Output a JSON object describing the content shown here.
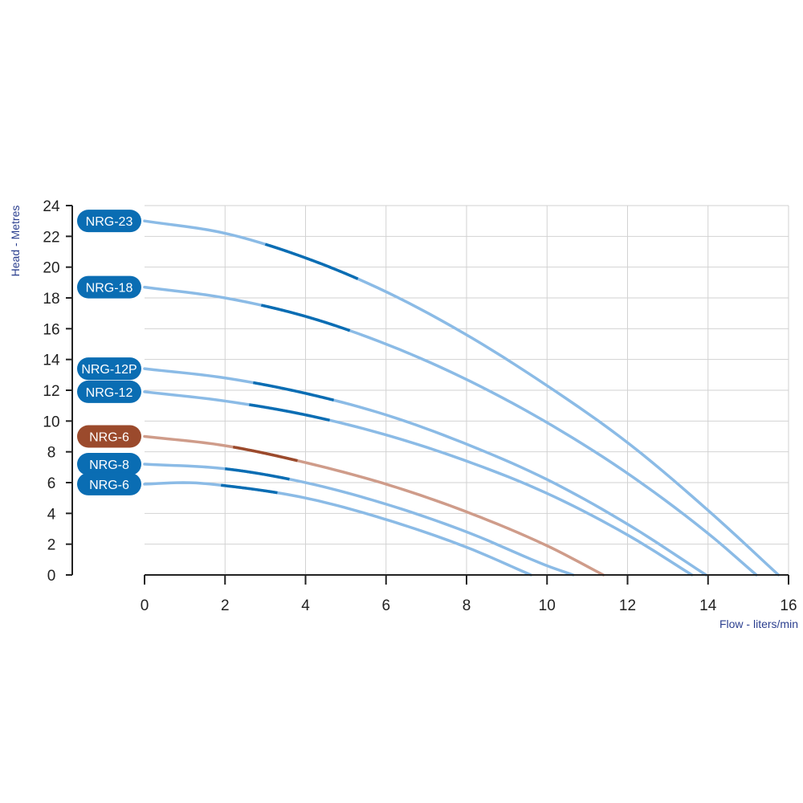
{
  "chart_data": {
    "type": "line",
    "xlabel": "Flow - liters/min",
    "ylabel": "Head - Metres",
    "xlim": [
      0,
      16
    ],
    "ylim": [
      0,
      24
    ],
    "x_ticks": [
      "0",
      "2",
      "4",
      "6",
      "8",
      "10",
      "12",
      "14",
      "16"
    ],
    "y_ticks": [
      "0",
      "2",
      "4",
      "6",
      "8",
      "10",
      "12",
      "14",
      "16",
      "18",
      "20",
      "22",
      "24"
    ],
    "grid": true,
    "colors": {
      "blue_curve": "#8bbbe6",
      "blue_highlight": "#0a6db3",
      "brown_curve": "#cf9c8a",
      "brown_highlight": "#9b4a2c",
      "blue_badge": "#0a6db3",
      "brown_badge": "#9b4a2c",
      "axis_title": "#2b3f8f"
    },
    "series": [
      {
        "name": "NRG-23",
        "color": "blue",
        "x": [
          0,
          2,
          4,
          6,
          8,
          10,
          12,
          14,
          15.75
        ],
        "y": [
          23,
          22.2,
          20.6,
          18.4,
          15.6,
          12.3,
          8.6,
          4.2,
          0
        ],
        "highlight": [
          3,
          5.3
        ]
      },
      {
        "name": "NRG-18",
        "color": "blue",
        "x": [
          0,
          2,
          4,
          6,
          8,
          10,
          12,
          14,
          15.2
        ],
        "y": [
          18.7,
          18,
          16.8,
          15,
          12.7,
          9.9,
          6.6,
          2.7,
          0
        ],
        "highlight": [
          2.9,
          5.1
        ]
      },
      {
        "name": "NRG-12P",
        "color": "blue",
        "x": [
          0,
          2,
          4,
          6,
          8,
          10,
          12,
          13.95
        ],
        "y": [
          13.4,
          12.8,
          11.8,
          10.4,
          8.5,
          6.2,
          3.3,
          0
        ],
        "highlight": [
          2.7,
          4.7
        ]
      },
      {
        "name": "NRG-12",
        "color": "blue",
        "x": [
          0,
          2,
          4,
          6,
          8,
          10,
          12,
          13.6
        ],
        "y": [
          11.9,
          11.3,
          10.4,
          9.1,
          7.4,
          5.3,
          2.6,
          0
        ],
        "highlight": [
          2.6,
          4.6
        ]
      },
      {
        "name": "NRG-6",
        "color": "brown",
        "x": [
          0,
          2,
          4,
          6,
          8,
          10,
          11.4
        ],
        "y": [
          9,
          8.4,
          7.3,
          5.9,
          4.1,
          1.9,
          0
        ],
        "highlight": [
          2.2,
          3.8
        ]
      },
      {
        "name": "NRG-8",
        "color": "blue",
        "x": [
          0,
          2,
          4,
          6,
          8,
          10,
          10.65
        ],
        "y": [
          7.2,
          6.9,
          6,
          4.6,
          2.8,
          0.6,
          0
        ],
        "highlight": [
          2,
          3.6
        ]
      },
      {
        "name": "NRG-6",
        "color": "blue",
        "x": [
          0,
          1,
          2,
          4,
          6,
          8,
          9.6
        ],
        "y": [
          5.9,
          6,
          5.8,
          5,
          3.6,
          1.8,
          0
        ],
        "highlight": [
          1.9,
          3.3
        ]
      }
    ]
  }
}
